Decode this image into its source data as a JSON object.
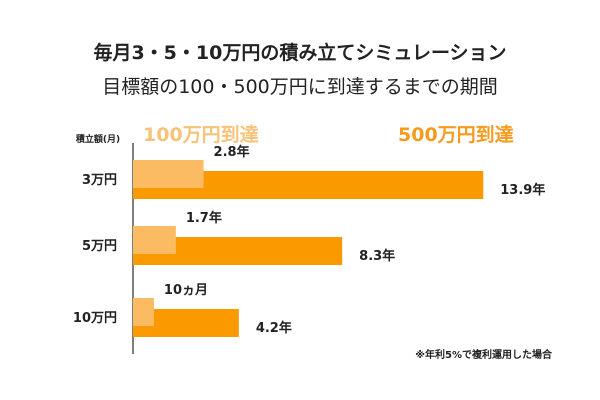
{
  "title": "毎月3・5・10万円の積み立てシミュレーション",
  "subtitle": "目標額の100・500万円に到達するまでの期間",
  "note": "※年利5%で複利運用した場合",
  "colors": {
    "light": "#fbbb62",
    "dark": "#fa9a00",
    "legend_light": "#f8c27a",
    "legend_dark": "#f79a1e",
    "axis": "#555555"
  },
  "chart_data": {
    "type": "bar",
    "orientation": "horizontal",
    "ylabel": "積立額(月)",
    "categories": [
      "3万円",
      "5万円",
      "10万円"
    ],
    "legend_placement": "top",
    "grid": false,
    "unit": "年",
    "series": [
      {
        "name": "100万円到達",
        "values": [
          2.8,
          1.7,
          0.83
        ],
        "labels": [
          "2.8年",
          "1.7年",
          "10ヵ月"
        ]
      },
      {
        "name": "500万円到達",
        "values": [
          13.9,
          8.3,
          4.2
        ],
        "labels": [
          "13.9年",
          "8.3年",
          "4.2年"
        ]
      }
    ]
  }
}
